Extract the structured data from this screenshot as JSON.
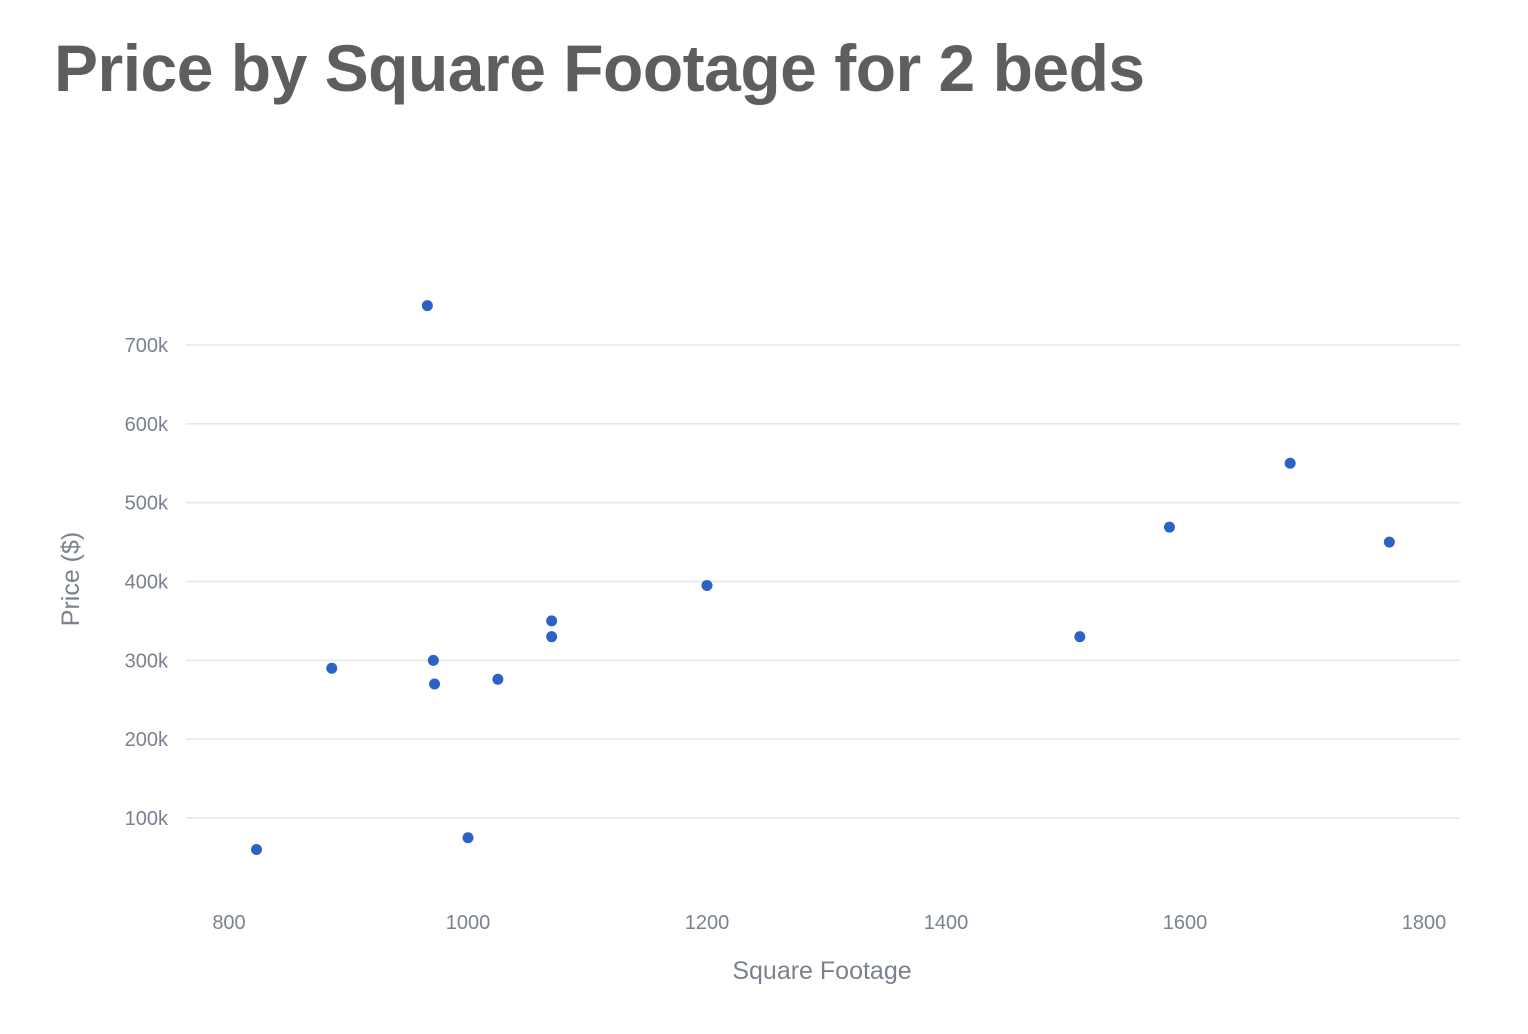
{
  "chart_data": {
    "type": "scatter",
    "title": "Price by Square Footage for 2 beds",
    "xlabel": "Square Footage",
    "ylabel": "Price ($)",
    "xlim": [
      762,
      1832
    ],
    "ylim": [
      -20000,
      830000
    ],
    "x_ticks": [
      800,
      1000,
      1200,
      1400,
      1600,
      1800
    ],
    "x_tick_labels": [
      "800",
      "1000",
      "1200",
      "1400",
      "1600",
      "1800"
    ],
    "y_ticks": [
      100000,
      200000,
      300000,
      400000,
      500000,
      600000,
      700000
    ],
    "y_tick_labels": [
      "100k",
      "200k",
      "300k",
      "400k",
      "500k",
      "600k",
      "700k"
    ],
    "grid": "horizontal",
    "marker_color": "#2a63c4",
    "points": [
      {
        "x": 823,
        "y": 60000
      },
      {
        "x": 886,
        "y": 290000
      },
      {
        "x": 966,
        "y": 750000
      },
      {
        "x": 971,
        "y": 300000
      },
      {
        "x": 972,
        "y": 270000
      },
      {
        "x": 1000,
        "y": 75000
      },
      {
        "x": 1025,
        "y": 276000
      },
      {
        "x": 1070,
        "y": 350000
      },
      {
        "x": 1070,
        "y": 330000
      },
      {
        "x": 1200,
        "y": 395000
      },
      {
        "x": 1512,
        "y": 330000
      },
      {
        "x": 1587,
        "y": 469000
      },
      {
        "x": 1688,
        "y": 550000
      },
      {
        "x": 1771,
        "y": 450000
      }
    ]
  }
}
